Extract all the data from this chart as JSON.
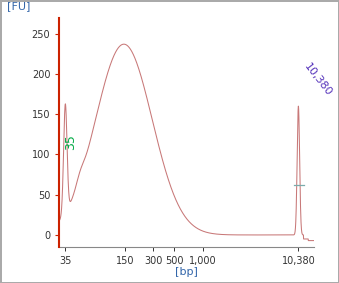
{
  "xlabel": "[bp]",
  "ylabel": "[FU]",
  "ylim": [
    -15,
    270
  ],
  "xlim_log": [
    1.48,
    4.18
  ],
  "tick_positions_log": [
    1.544,
    2.176,
    2.477,
    2.699,
    3.0,
    4.016
  ],
  "tick_labels": [
    "35",
    "150",
    "300",
    "500",
    "1,000",
    "10,380"
  ],
  "yticks": [
    0,
    50,
    100,
    150,
    200,
    250
  ],
  "curve_color": "#c87878",
  "peak1_x_log": 1.544,
  "peak1_y": 135,
  "peak1_label": "35",
  "peak1_label_color": "#00aa44",
  "peak2_x_log": 4.016,
  "peak2_y": 160,
  "peak2_label": "10,380",
  "peak2_label_color": "#5533bb",
  "background_color": "#ffffff",
  "axis_color": "#cc2200",
  "tick_color": "#333333",
  "label_color": "#3366aa",
  "border_color": "#aaaaaa",
  "marker_line_y": 62,
  "marker_line_color": "#7aabab"
}
